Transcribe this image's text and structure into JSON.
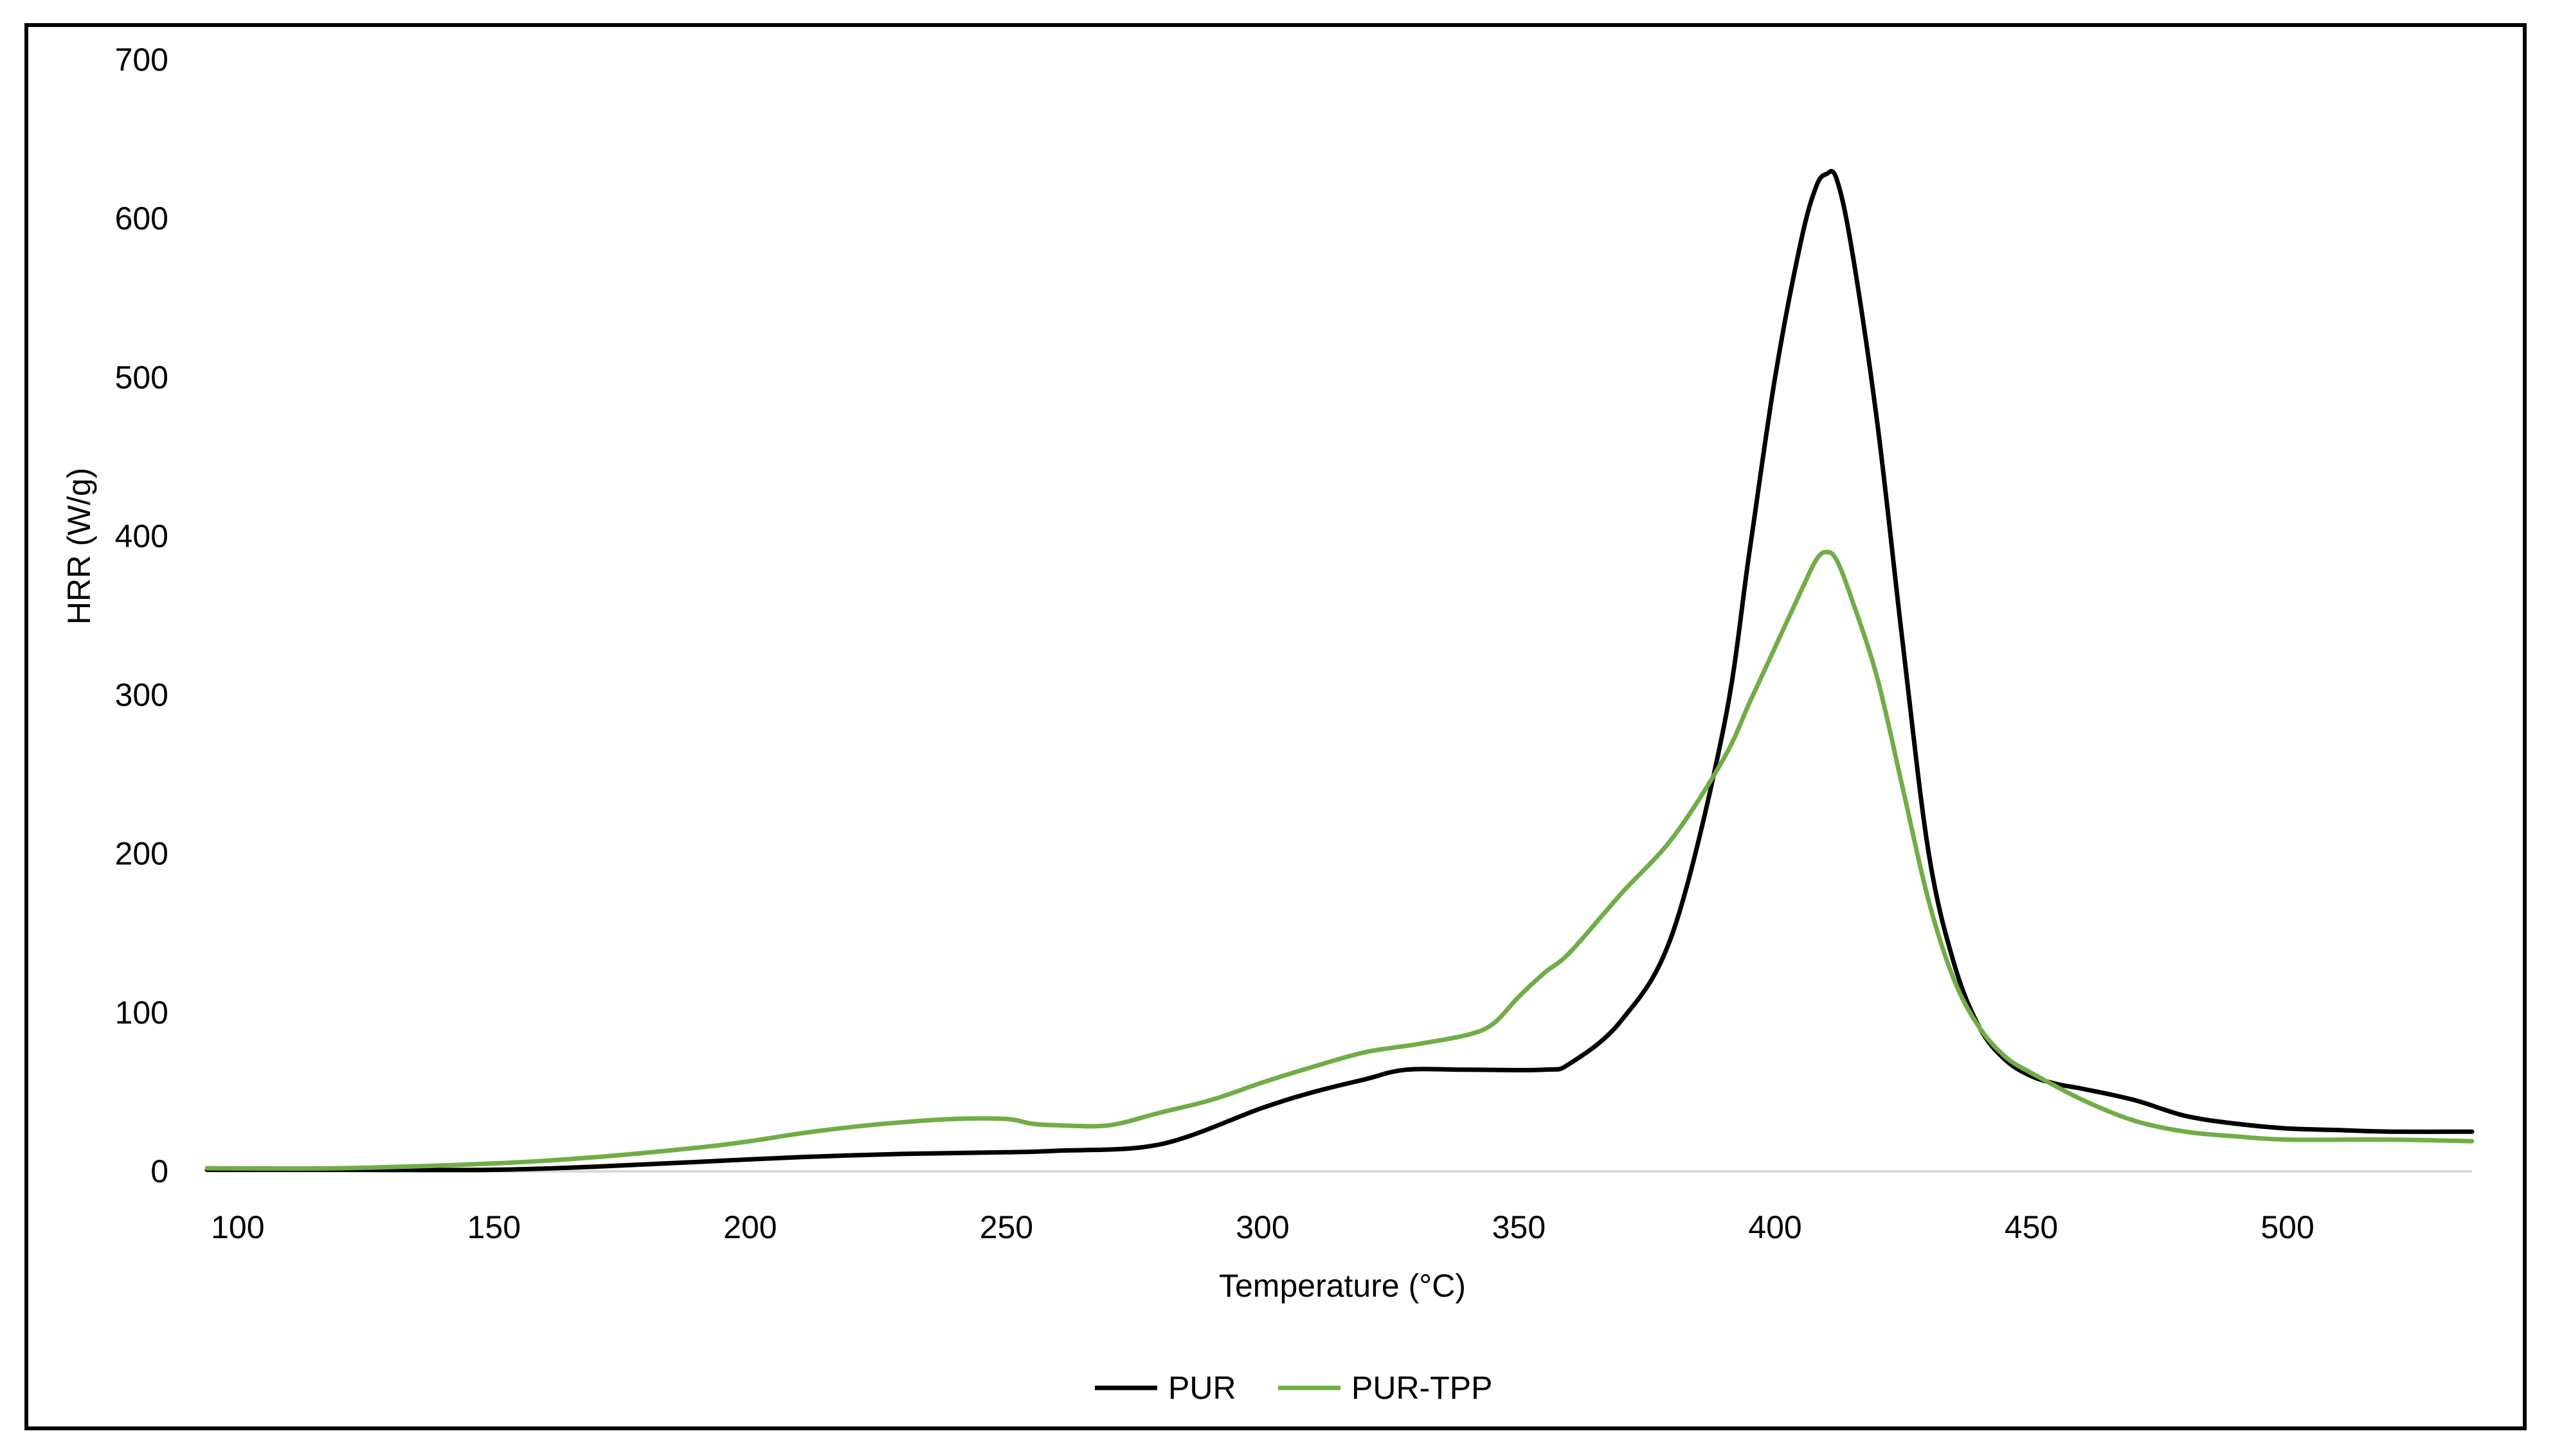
{
  "chart_data": {
    "type": "line",
    "title": "",
    "xlabel": "Temperature (°C)",
    "ylabel": "HRR (W/g)",
    "xlim": [
      94,
      536
    ],
    "ylim": [
      0,
      700
    ],
    "x_ticks": [
      "100",
      "150",
      "200",
      "250",
      "300",
      "350",
      "400",
      "450",
      "500"
    ],
    "y_ticks": [
      "0",
      "100",
      "200",
      "300",
      "400",
      "500",
      "600",
      "700"
    ],
    "grid": false,
    "legend_position": "bottom-center",
    "series": [
      {
        "name": "PUR",
        "color": "#000000",
        "x": [
          94,
          120,
          150,
          170,
          190,
          210,
          230,
          250,
          260,
          280,
          300,
          310,
          320,
          328,
          340,
          355,
          360,
          370,
          380,
          390,
          395,
          400,
          405,
          408,
          410,
          412,
          415,
          420,
          425,
          430,
          435,
          440,
          445,
          450,
          455,
          460,
          470,
          480,
          490,
          500,
          510,
          520,
          536
        ],
        "y": [
          1,
          1,
          1,
          3,
          6,
          9,
          11,
          12,
          13,
          17,
          40,
          50,
          58,
          64,
          64,
          64,
          68,
          95,
          150,
          280,
          390,
          500,
          585,
          620,
          628,
          625,
          580,
          470,
          330,
          200,
          130,
          90,
          70,
          60,
          55,
          52,
          45,
          35,
          30,
          27,
          26,
          25,
          25
        ]
      },
      {
        "name": "PUR-TPP",
        "color": "#70ad47",
        "x": [
          94,
          120,
          150,
          170,
          190,
          200,
          210,
          220,
          230,
          240,
          250,
          255,
          260,
          270,
          280,
          290,
          300,
          310,
          320,
          330,
          340,
          345,
          350,
          355,
          360,
          370,
          380,
          390,
          395,
          400,
          405,
          408,
          410,
          412,
          415,
          420,
          425,
          430,
          435,
          440,
          445,
          450,
          460,
          470,
          480,
          490,
          500,
          520,
          536
        ],
        "y": [
          2,
          2,
          5,
          9,
          15,
          19,
          24,
          28,
          31,
          33,
          33,
          30,
          29,
          29,
          37,
          45,
          56,
          66,
          75,
          80,
          86,
          93,
          110,
          125,
          138,
          175,
          210,
          260,
          295,
          330,
          365,
          385,
          390,
          385,
          360,
          310,
          240,
          170,
          120,
          90,
          72,
          62,
          45,
          32,
          25,
          22,
          20,
          20,
          19
        ]
      }
    ]
  }
}
